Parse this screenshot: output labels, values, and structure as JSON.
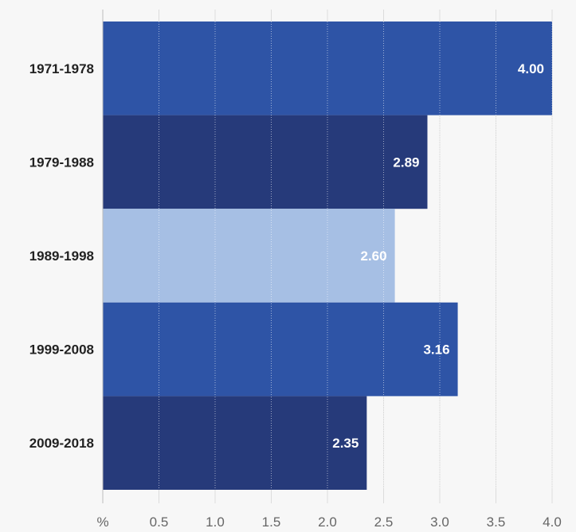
{
  "chart_data": {
    "type": "bar",
    "orientation": "horizontal",
    "categories": [
      "1971-1978",
      "1979-1988",
      "1989-1998",
      "1999-2008",
      "2009-2018"
    ],
    "values": [
      4.0,
      2.89,
      2.6,
      3.16,
      2.35
    ],
    "value_labels": [
      "4.00",
      "2.89",
      "2.60",
      "3.16",
      "2.35"
    ],
    "bar_colors": [
      "#2e54a6",
      "#263a7a",
      "#a6bfe4",
      "#2e54a6",
      "#263a7a"
    ],
    "x_ticks": [
      "%",
      "0.5",
      "1.0",
      "1.5",
      "2.0",
      "2.5",
      "3.0",
      "3.5",
      "4.0"
    ],
    "xlim": [
      0,
      4.0
    ],
    "grid": true,
    "title": "",
    "xlabel": "",
    "ylabel": ""
  }
}
